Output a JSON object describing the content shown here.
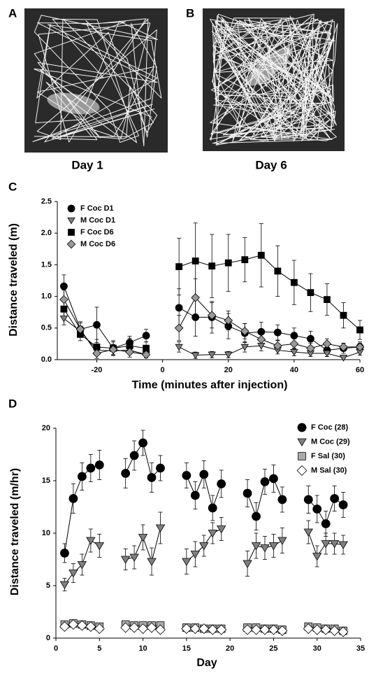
{
  "images": [
    {
      "label": "A",
      "caption": "Day 1"
    },
    {
      "label": "B",
      "caption": "Day 6"
    }
  ],
  "chart_data": [
    {
      "type": "line",
      "panel_label": "C",
      "y_label": "Distance traveled (m)",
      "x_label": "Time (minutes after injection)",
      "x": [
        -30,
        -25,
        -20,
        -15,
        -10,
        -5,
        0,
        5,
        10,
        15,
        20,
        25,
        30,
        35,
        40,
        45,
        50,
        55,
        60
      ],
      "xlim": [
        -32,
        60
      ],
      "xticks": [
        -20,
        0,
        20,
        40,
        60
      ],
      "ylim": [
        0,
        2.5
      ],
      "yticks": [
        {
          "value": 0,
          "label": "0.0"
        },
        0.5,
        {
          "value": 1,
          "label": "1.0"
        },
        1.5,
        {
          "value": 2,
          "label": "2.0"
        },
        2.5
      ],
      "legend": "upper left",
      "series": [
        {
          "name": "F Coc D1",
          "color": "#000000",
          "marker": "circle",
          "values": [
            1.16,
            0.48,
            0.55,
            0.18,
            0.27,
            0.38,
            null,
            0.82,
            0.67,
            0.67,
            0.53,
            0.42,
            0.44,
            0.43,
            0.38,
            0.33,
            0.15,
            0.18,
            0.2
          ],
          "errors": [
            0.18,
            0.12,
            0.28,
            0.12,
            0.1,
            0.1,
            null,
            0.3,
            0.3,
            0.25,
            0.2,
            0.15,
            0.15,
            0.12,
            0.12,
            0.12,
            0.1,
            0.08,
            0.08
          ]
        },
        {
          "name": "M Coc D1",
          "color": "#808080",
          "marker": "triangle-down",
          "values": [
            0.65,
            0.45,
            0.15,
            0.14,
            0.15,
            0.08,
            null,
            0.2,
            0.07,
            0.08,
            0.08,
            0.2,
            0.22,
            0.15,
            0.12,
            0.1,
            0.1,
            0.03,
            0.12
          ],
          "errors": [
            0.1,
            0.08,
            0.08,
            0.06,
            0.06,
            0.05,
            null,
            0.08,
            0.05,
            0.05,
            0.05,
            0.08,
            0.08,
            0.06,
            0.06,
            0.05,
            0.05,
            0.03,
            0.05
          ]
        },
        {
          "name": "F Coc D6",
          "color": "#000000",
          "marker": "square",
          "values": [
            0.8,
            0.4,
            0.2,
            0.18,
            0.22,
            0.18,
            null,
            1.47,
            1.56,
            1.48,
            1.53,
            1.58,
            1.65,
            1.4,
            1.22,
            1.06,
            0.95,
            0.7,
            0.47
          ],
          "errors": [
            0.15,
            0.1,
            0.12,
            0.1,
            0.12,
            0.1,
            null,
            0.45,
            0.6,
            0.5,
            0.45,
            0.35,
            0.5,
            0.4,
            0.35,
            0.3,
            0.25,
            0.2,
            0.15
          ]
        },
        {
          "name": "M Coc D6",
          "color": "#999999",
          "marker": "diamond",
          "values": [
            0.95,
            0.48,
            0.1,
            0.16,
            0.12,
            0.08,
            null,
            0.5,
            0.98,
            0.7,
            0.62,
            0.45,
            0.32,
            0.22,
            0.25,
            0.18,
            0.25,
            0.2,
            0.2
          ],
          "errors": [
            0.15,
            0.1,
            0.08,
            0.08,
            0.08,
            0.05,
            null,
            0.2,
            0.3,
            0.2,
            0.15,
            0.12,
            0.1,
            0.08,
            0.08,
            0.08,
            0.08,
            0.06,
            0.06
          ]
        }
      ]
    },
    {
      "type": "line",
      "panel_label": "D",
      "y_label": "Distance traveled (m/hr)",
      "x_label": "Day",
      "x": [
        1,
        2,
        3,
        4,
        5,
        6,
        7,
        8,
        9,
        10,
        11,
        12,
        13,
        14,
        15,
        16,
        17,
        18,
        19,
        20,
        21,
        22,
        23,
        24,
        25,
        26,
        27,
        28,
        29,
        30,
        31,
        32,
        33
      ],
      "xlim": [
        0,
        35
      ],
      "xticks": [
        0,
        5,
        10,
        15,
        20,
        25,
        30,
        35
      ],
      "ylim": [
        0,
        20
      ],
      "yticks": [
        0,
        5,
        10,
        15,
        20
      ],
      "legend": "upper right",
      "series": [
        {
          "name": "F Coc (28)",
          "color": "#000000",
          "marker": "circle",
          "values": [
            8.1,
            13.3,
            15.4,
            16.2,
            16.5,
            null,
            null,
            15.7,
            17.4,
            18.6,
            15.3,
            16.2,
            null,
            null,
            15.5,
            13.6,
            15.6,
            12.4,
            14.7,
            null,
            null,
            13.8,
            11.6,
            14.9,
            15.2,
            13.2,
            null,
            null,
            13.2,
            12.3,
            10.9,
            13.3,
            12.7
          ],
          "errors": [
            0.9,
            1.4,
            1.3,
            1.3,
            1.4,
            null,
            null,
            1.4,
            1.4,
            1.2,
            1.4,
            1.2,
            null,
            null,
            1.2,
            1.3,
            1.3,
            1.2,
            1.3,
            null,
            null,
            1.3,
            1.3,
            1.2,
            1.3,
            1.2,
            null,
            null,
            1.3,
            1.3,
            1.2,
            1.2,
            1.2
          ]
        },
        {
          "name": "M Coc (29)",
          "color": "#808080",
          "marker": "triangle-down",
          "values": [
            5.1,
            6.2,
            7.0,
            9.3,
            8.8,
            null,
            null,
            7.5,
            7.7,
            9.6,
            7.3,
            10.5,
            null,
            null,
            7.3,
            8.0,
            8.8,
            10.0,
            10.4,
            null,
            null,
            7.1,
            8.8,
            8.6,
            8.8,
            9.3,
            null,
            null,
            10.1,
            7.8,
            9.0,
            9.0,
            8.9
          ],
          "errors": [
            0.6,
            0.9,
            1.0,
            1.1,
            1.1,
            null,
            null,
            1.0,
            1.1,
            1.2,
            1.3,
            1.5,
            null,
            null,
            1.2,
            1.2,
            1.0,
            1.0,
            1.1,
            null,
            null,
            1.2,
            1.2,
            1.1,
            1.1,
            1.2,
            null,
            null,
            1.1,
            1.0,
            1.0,
            1.0,
            0.9
          ]
        },
        {
          "name": "F Sal (30)",
          "color": "#aaaaaa",
          "marker": "square",
          "values": [
            1.3,
            1.4,
            1.3,
            1.2,
            1.1,
            null,
            null,
            1.3,
            1.2,
            1.2,
            1.2,
            1.2,
            null,
            null,
            1.0,
            1.0,
            0.9,
            0.9,
            0.9,
            null,
            null,
            1.0,
            1.0,
            0.9,
            0.9,
            0.8,
            null,
            null,
            1.1,
            1.0,
            0.9,
            0.9,
            0.7
          ]
        },
        {
          "name": "M Sal (30)",
          "color": "#ffffff",
          "marker": "diamond",
          "values": [
            1.1,
            1.3,
            1.2,
            1.1,
            0.9,
            null,
            null,
            1.0,
            1.0,
            0.9,
            1.0,
            0.8,
            null,
            null,
            0.9,
            0.9,
            0.9,
            0.8,
            0.8,
            null,
            null,
            0.8,
            0.8,
            0.8,
            0.8,
            0.7,
            null,
            null,
            0.9,
            0.8,
            0.8,
            0.7,
            0.6
          ]
        }
      ]
    }
  ]
}
